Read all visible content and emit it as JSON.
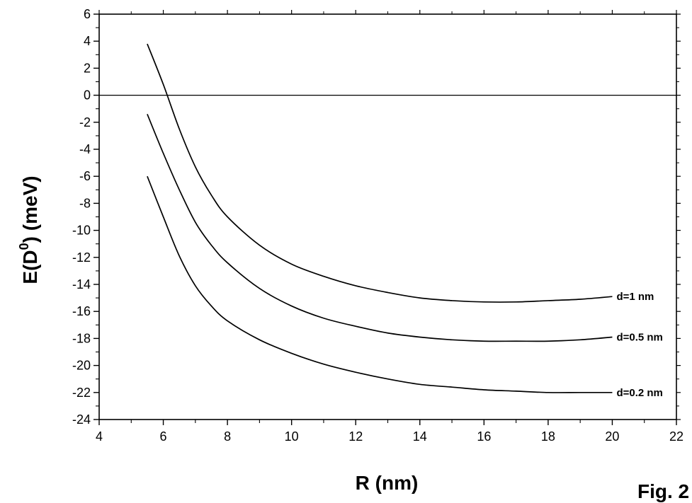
{
  "chart_data": {
    "type": "line",
    "title": "",
    "xlabel": "R (nm)",
    "ylabel_main": "E(D",
    "ylabel_sup": "0",
    "ylabel_tail": ") (meV)",
    "xlim": [
      4,
      22
    ],
    "ylim": [
      -24,
      6
    ],
    "xticks": [
      4,
      6,
      8,
      10,
      12,
      14,
      16,
      18,
      20,
      22
    ],
    "yticks": [
      6,
      4,
      2,
      0,
      -2,
      -4,
      -6,
      -8,
      -10,
      -12,
      -14,
      -16,
      -18,
      -20,
      -22,
      -24
    ],
    "reference_line_y": 0,
    "grid": false,
    "series": [
      {
        "name": "d=1 nm",
        "x": [
          5.5,
          6,
          6.5,
          7,
          7.5,
          8,
          9,
          10,
          11,
          12,
          13,
          14,
          15,
          16,
          17,
          18,
          19,
          20
        ],
        "y": [
          3.8,
          0.8,
          -2.5,
          -5.3,
          -7.4,
          -9.0,
          -11.1,
          -12.5,
          -13.4,
          -14.1,
          -14.6,
          -15.0,
          -15.2,
          -15.3,
          -15.3,
          -15.2,
          -15.1,
          -14.9
        ]
      },
      {
        "name": "d=0.5 nm",
        "x": [
          5.5,
          6,
          6.5,
          7,
          7.5,
          8,
          9,
          10,
          11,
          12,
          13,
          14,
          15,
          16,
          17,
          18,
          19,
          20
        ],
        "y": [
          -1.4,
          -4.3,
          -7.0,
          -9.4,
          -11.1,
          -12.4,
          -14.3,
          -15.6,
          -16.5,
          -17.1,
          -17.6,
          -17.9,
          -18.1,
          -18.2,
          -18.2,
          -18.2,
          -18.1,
          -17.9
        ]
      },
      {
        "name": "d=0.2 nm",
        "x": [
          5.5,
          6,
          6.5,
          7,
          7.5,
          8,
          9,
          10,
          11,
          12,
          13,
          14,
          15,
          16,
          17,
          18,
          19,
          20
        ],
        "y": [
          -6.0,
          -9.0,
          -11.9,
          -14.1,
          -15.6,
          -16.7,
          -18.1,
          -19.1,
          -19.9,
          -20.5,
          -21.0,
          -21.4,
          -21.6,
          -21.8,
          -21.9,
          -22.0,
          -22.0,
          -22.0
        ]
      }
    ]
  },
  "figure_label": "Fig. 2"
}
